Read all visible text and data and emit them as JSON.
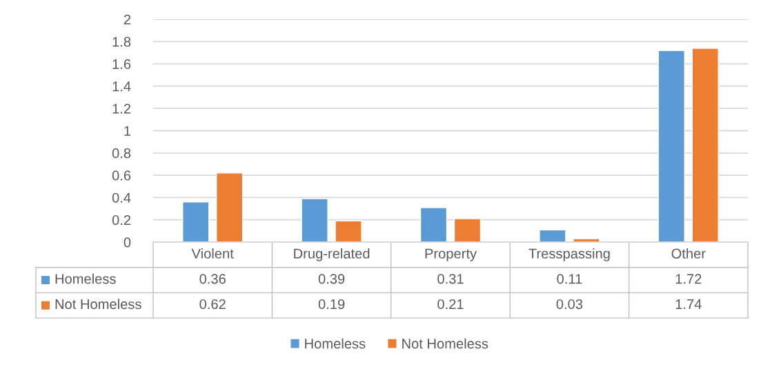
{
  "chart_data": {
    "type": "bar",
    "categories": [
      "Violent",
      "Drug-related",
      "Property",
      "Tresspassing",
      "Other"
    ],
    "series": [
      {
        "name": "Homeless",
        "color": "#5b9bd5",
        "values": [
          0.36,
          0.39,
          0.31,
          0.11,
          1.72
        ]
      },
      {
        "name": "Not Homeless",
        "color": "#ed7d31",
        "values": [
          0.62,
          0.19,
          0.21,
          0.03,
          1.74
        ]
      }
    ],
    "ylim": [
      0,
      2
    ],
    "yticks": [
      0,
      0.2,
      0.4,
      0.6,
      0.8,
      1,
      1.2,
      1.4,
      1.6,
      1.8,
      2
    ],
    "grid": "y",
    "legend": "bottom",
    "data_labels": true
  }
}
